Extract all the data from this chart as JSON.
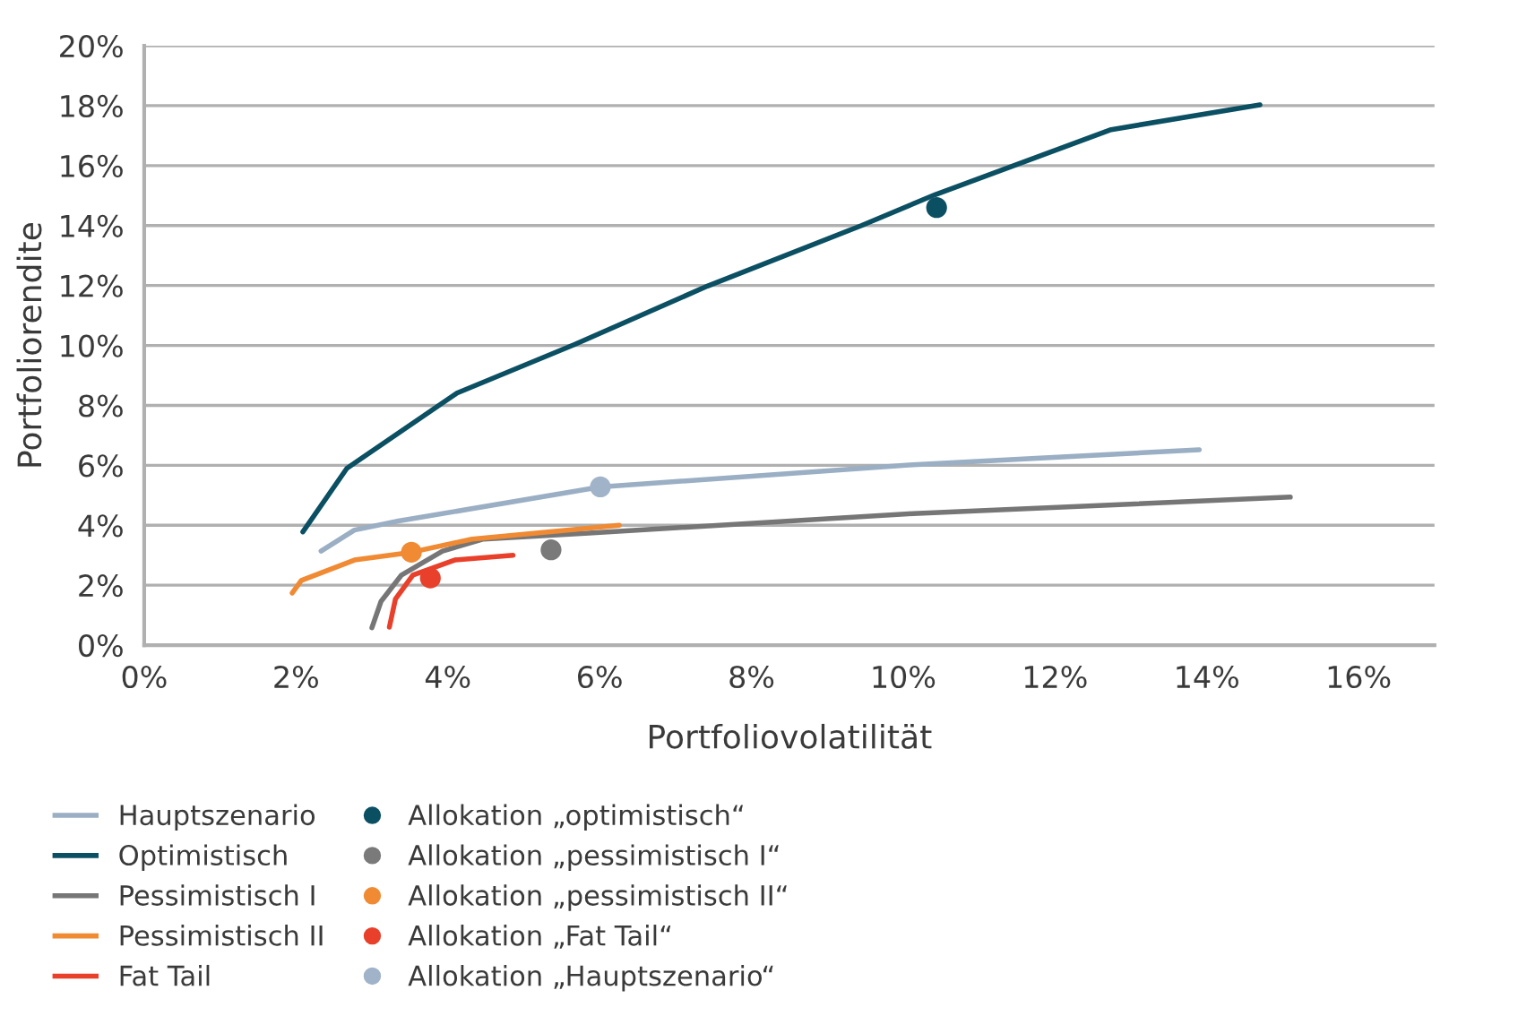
{
  "chart_data": {
    "type": "line",
    "xlabel": "Portfoliovolatilität",
    "ylabel": "Portfoliorendite",
    "xlim": [
      0,
      17
    ],
    "xticks": [
      {
        "value": 0,
        "label": "0%"
      },
      {
        "value": 2,
        "label": "2%"
      },
      {
        "value": 4,
        "label": "4%"
      },
      {
        "value": 6,
        "label": "6%"
      },
      {
        "value": 8,
        "label": "8%"
      },
      {
        "value": 10,
        "label": "10%"
      },
      {
        "value": 12,
        "label": "12%"
      },
      {
        "value": 14,
        "label": "14%"
      },
      {
        "value": 16,
        "label": "16%"
      }
    ],
    "ylim": [
      0,
      20
    ],
    "yticks": [
      {
        "value": 0,
        "label": "0%"
      },
      {
        "value": 2,
        "label": "2%"
      },
      {
        "value": 4,
        "label": "4%"
      },
      {
        "value": 6,
        "label": "6%"
      },
      {
        "value": 8,
        "label": "8%"
      },
      {
        "value": 10,
        "label": "10%"
      },
      {
        "value": 12,
        "label": "12%"
      },
      {
        "value": 14,
        "label": "14%"
      },
      {
        "value": 16,
        "label": "16%"
      },
      {
        "value": 18,
        "label": "18%"
      },
      {
        "value": 20,
        "label": "20%"
      }
    ],
    "grid": "y",
    "legend": "bottom",
    "series": [
      {
        "name": "Hauptszenario",
        "color": "#9aaec4",
        "x": [
          2.33,
          2.77,
          3.35,
          6.01,
          10.13,
          13.9
        ],
        "values": [
          3.14,
          3.84,
          4.14,
          5.28,
          6.02,
          6.52
        ]
      },
      {
        "name": "Optimistisch",
        "color": "#0b4f63",
        "x": [
          2.09,
          2.67,
          4.12,
          5.67,
          7.42,
          9.45,
          10.42,
          12.74,
          14.7
        ],
        "values": [
          3.78,
          5.9,
          8.41,
          10.03,
          11.98,
          14.0,
          15.03,
          17.2,
          18.03
        ]
      },
      {
        "name": "Pessimistisch I",
        "color": "#767676",
        "x": [
          3.0,
          3.12,
          3.39,
          3.93,
          4.47,
          5.86,
          10.13,
          15.1
        ],
        "values": [
          0.58,
          1.46,
          2.34,
          3.14,
          3.54,
          3.74,
          4.39,
          4.94
        ]
      },
      {
        "name": "Pessimistisch II",
        "color": "#f08a33",
        "x": [
          1.95,
          2.07,
          2.77,
          3.52,
          4.32,
          6.26
        ],
        "values": [
          1.74,
          2.16,
          2.84,
          3.1,
          3.54,
          4.0
        ]
      },
      {
        "name": "Fat Tail",
        "color": "#e8402a",
        "x": [
          3.23,
          3.31,
          3.54,
          4.09,
          4.86
        ],
        "values": [
          0.6,
          1.54,
          2.34,
          2.84,
          3.0
        ]
      },
      {
        "name": "Allokation „optimistisch“",
        "type": "scatter",
        "marker": "circle",
        "color": "#0b4f63",
        "x": [
          10.44
        ],
        "values": [
          14.6
        ]
      },
      {
        "name": "Allokation „pessimistisch I“",
        "type": "scatter",
        "marker": "circle",
        "color": "#7a7a7a",
        "x": [
          5.36
        ],
        "values": [
          3.18
        ]
      },
      {
        "name": "Allokation „pessimistisch II“",
        "type": "scatter",
        "marker": "circle",
        "color": "#f08a33",
        "x": [
          3.52
        ],
        "values": [
          3.1
        ]
      },
      {
        "name": "Allokation „Fat Tail“",
        "type": "scatter",
        "marker": "circle",
        "color": "#e8402a",
        "x": [
          3.77
        ],
        "values": [
          2.24
        ]
      },
      {
        "name": "Allokation „Hauptszenario“",
        "type": "scatter",
        "marker": "circle",
        "color": "#a0b3c8",
        "x": [
          6.01
        ],
        "values": [
          5.28
        ]
      }
    ]
  }
}
